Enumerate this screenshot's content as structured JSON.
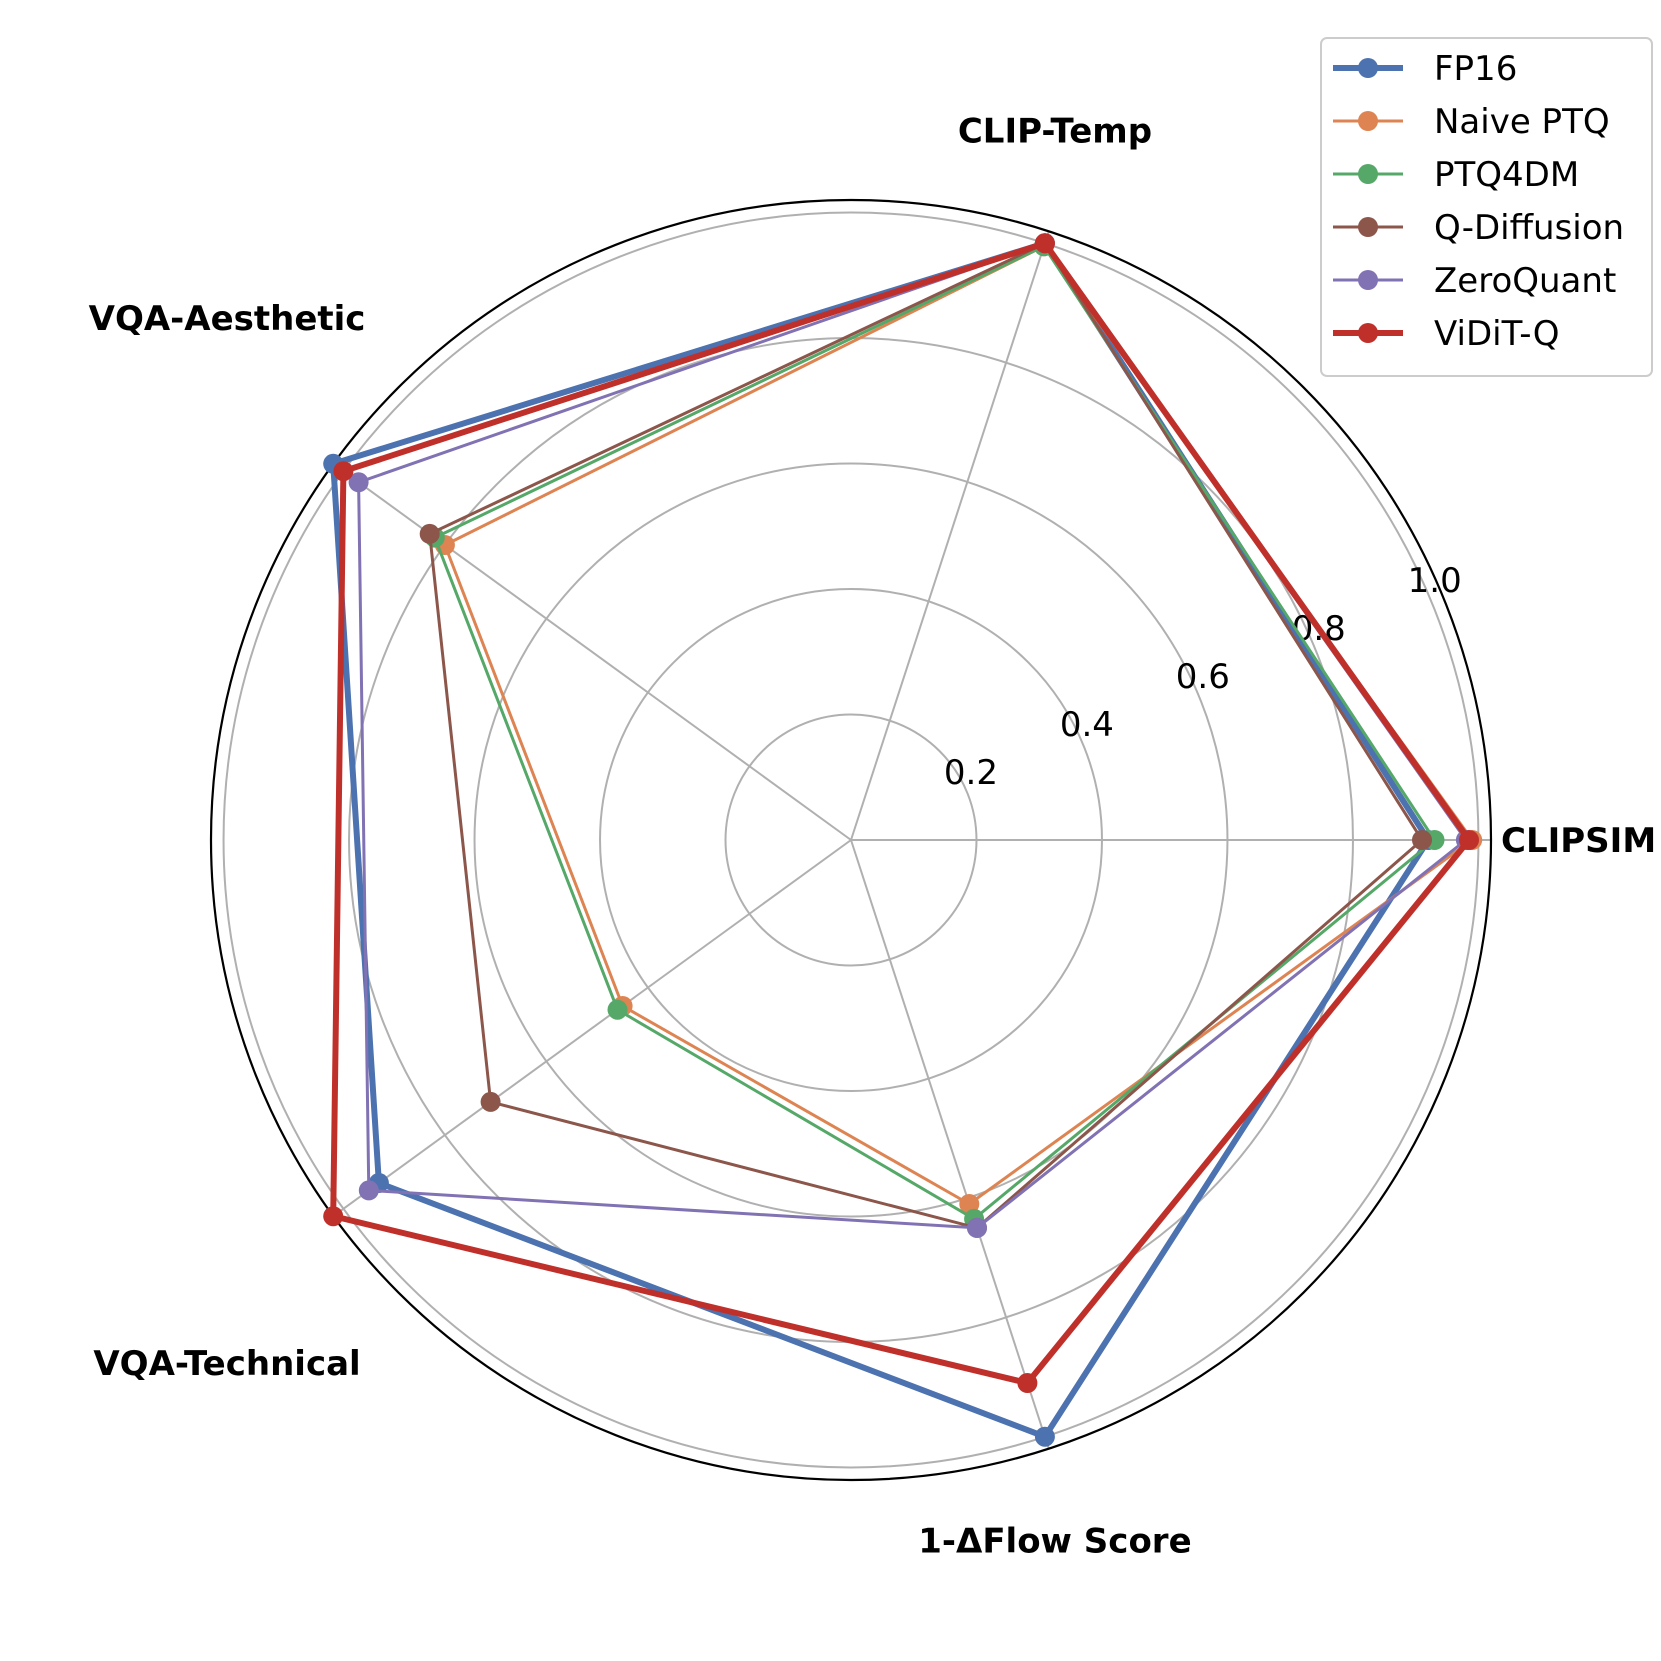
{
  "chart_data": {
    "type": "radar",
    "axes": [
      "CLIPSIM",
      "CLIP-Temp",
      "VQA-Aesthetic",
      "VQA-Technical",
      "1-ΔFlow Score"
    ],
    "radial_ticks": [
      "0.2",
      "0.4",
      "0.6",
      "0.8",
      "1.0"
    ],
    "rlim": [
      0,
      1.02
    ],
    "grid": true,
    "legend_position": "top-right",
    "series": [
      {
        "name": "FP16",
        "color": "#4c72b0",
        "emphasis": true,
        "values": [
          0.92,
          1.0,
          1.02,
          0.93,
          1.0
        ]
      },
      {
        "name": "Naive PTQ",
        "color": "#dd8452",
        "emphasis": false,
        "values": [
          0.99,
          0.995,
          0.8,
          0.45,
          0.61
        ]
      },
      {
        "name": "PTQ4DM",
        "color": "#55a868",
        "emphasis": false,
        "values": [
          0.93,
          0.995,
          0.82,
          0.46,
          0.635
        ]
      },
      {
        "name": "Q-Diffusion",
        "color": "#8c564b",
        "emphasis": false,
        "values": [
          0.91,
          1.0,
          0.83,
          0.71,
          0.65
        ]
      },
      {
        "name": "ZeroQuant",
        "color": "#8172b3",
        "emphasis": false,
        "values": [
          0.98,
          1.0,
          0.97,
          0.95,
          0.65
        ]
      },
      {
        "name": "ViDiT-Q",
        "color": "#c0302b",
        "emphasis": true,
        "values": [
          0.985,
          1.0,
          1.0,
          1.02,
          0.91
        ]
      }
    ]
  }
}
